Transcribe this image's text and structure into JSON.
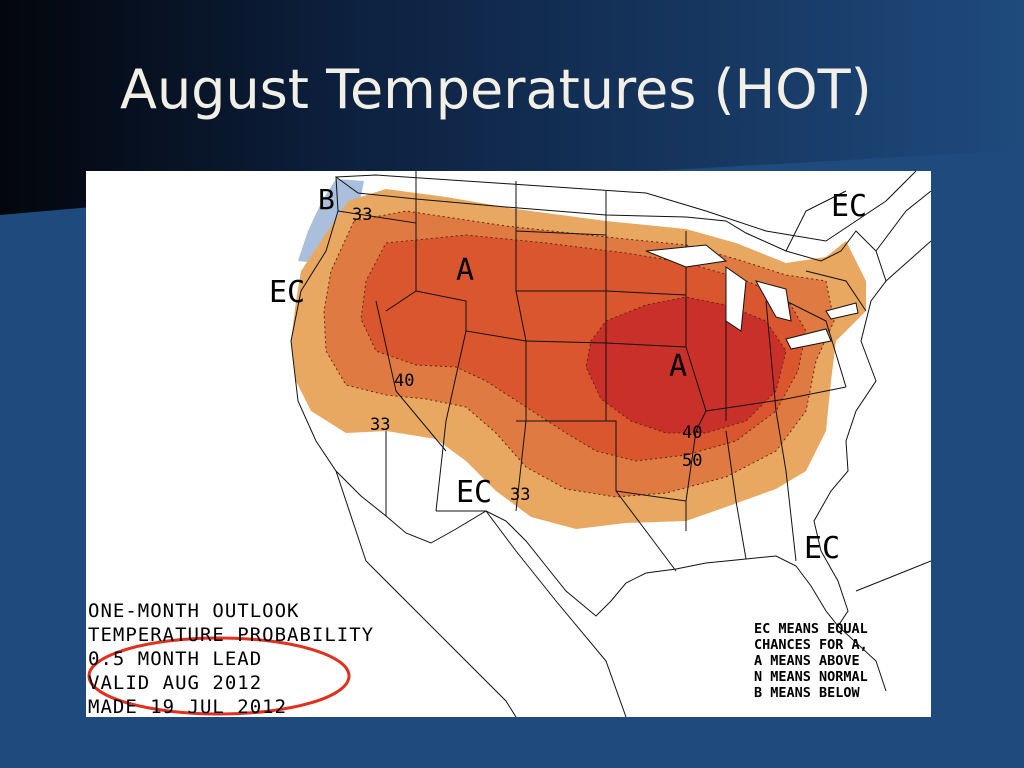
{
  "slide": {
    "title": "August Temperatures (HOT)"
  },
  "map": {
    "outlook_lines": [
      "ONE-MONTH OUTLOOK",
      "TEMPERATURE PROBABILITY",
      "0.5 MONTH LEAD",
      "VALID AUG 2012",
      "MADE 19 JUL 2012"
    ],
    "legend_lines": [
      "EC MEANS EQUAL",
      "CHANCES FOR A,",
      "A MEANS ABOVE",
      "N MEANS NORMAL",
      "B MEANS BELOW"
    ],
    "labels": {
      "ec_west": "EC",
      "ec_northeast": "EC",
      "ec_south": "EC",
      "ec_florida": "EC",
      "b_northwest": "B",
      "a_north": "A",
      "a_midwest": "A",
      "p33_nw": "33",
      "p40_west": "40",
      "p33_sw": "33",
      "p33_south": "33",
      "p40_se": "40",
      "p50_se": "50"
    },
    "colors": {
      "above_33": "#e8a862",
      "above_40": "#e07a43",
      "above_50": "#d9562f",
      "above_60": "#c9302a",
      "below_33": "#a9bfdc",
      "highlight_circle": "#e0301e"
    }
  }
}
